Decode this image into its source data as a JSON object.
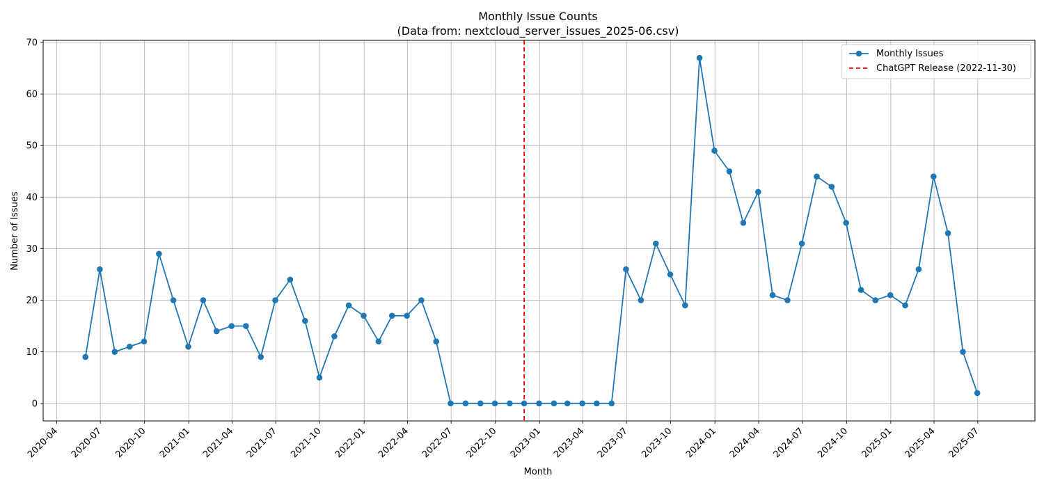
{
  "chart_data": {
    "type": "line",
    "title": "Monthly Issue Counts",
    "subtitle": "(Data from: nextcloud_server_issues_2025-06.csv)",
    "xlabel": "Month",
    "ylabel": "Number of Issues",
    "x_axis_type": "date",
    "x_range": [
      "2020-03-04",
      "2025-10-28"
    ],
    "ylim": [
      -3.4,
      70.4
    ],
    "grid": true,
    "legend_position": "top-right",
    "x_ticks": [
      "2020-04",
      "2020-07",
      "2020-10",
      "2021-01",
      "2021-04",
      "2021-07",
      "2021-10",
      "2022-01",
      "2022-04",
      "2022-07",
      "2022-10",
      "2023-01",
      "2023-04",
      "2023-07",
      "2023-10",
      "2024-01",
      "2024-04",
      "2024-07",
      "2024-10",
      "2025-01",
      "2025-04",
      "2025-07"
    ],
    "y_ticks": [
      0,
      10,
      20,
      30,
      40,
      50,
      60,
      70
    ],
    "series": [
      {
        "name": "Monthly Issues",
        "color": "#1f77b4",
        "marker": "circle",
        "x": [
          "2020-05-31",
          "2020-06-30",
          "2020-07-31",
          "2020-08-31",
          "2020-09-30",
          "2020-10-31",
          "2020-11-30",
          "2020-12-31",
          "2021-01-31",
          "2021-02-28",
          "2021-03-31",
          "2021-04-30",
          "2021-05-31",
          "2021-06-30",
          "2021-07-31",
          "2021-08-31",
          "2021-09-30",
          "2021-10-31",
          "2021-11-30",
          "2021-12-31",
          "2022-01-31",
          "2022-02-28",
          "2022-03-31",
          "2022-04-30",
          "2022-05-31",
          "2022-06-30",
          "2022-07-31",
          "2022-08-31",
          "2022-09-30",
          "2022-10-31",
          "2022-11-30",
          "2022-12-31",
          "2023-01-31",
          "2023-02-28",
          "2023-03-31",
          "2023-04-30",
          "2023-05-31",
          "2023-06-30",
          "2023-07-31",
          "2023-08-31",
          "2023-09-30",
          "2023-10-31",
          "2023-11-30",
          "2023-12-31",
          "2024-01-31",
          "2024-02-29",
          "2024-03-31",
          "2024-04-30",
          "2024-05-31",
          "2024-06-30",
          "2024-07-31",
          "2024-08-31",
          "2024-09-30",
          "2024-10-31",
          "2024-11-30",
          "2024-12-31",
          "2025-01-31",
          "2025-02-28",
          "2025-03-31",
          "2025-04-30",
          "2025-05-31",
          "2025-06-30"
        ],
        "values": [
          9,
          26,
          10,
          11,
          12,
          29,
          20,
          11,
          20,
          14,
          15,
          15,
          9,
          20,
          24,
          16,
          5,
          13,
          19,
          17,
          12,
          17,
          17,
          20,
          12,
          0,
          0,
          0,
          0,
          0,
          0,
          0,
          0,
          0,
          0,
          0,
          0,
          26,
          20,
          31,
          25,
          19,
          67,
          49,
          45,
          35,
          41,
          21,
          20,
          31,
          44,
          42,
          35,
          22,
          20,
          21,
          19,
          26,
          44,
          33,
          10,
          2
        ]
      }
    ],
    "reference_lines": [
      {
        "name": "ChatGPT Release (2022-11-30)",
        "x": "2022-11-30",
        "color": "#ff0000",
        "style": "dashed"
      }
    ]
  }
}
